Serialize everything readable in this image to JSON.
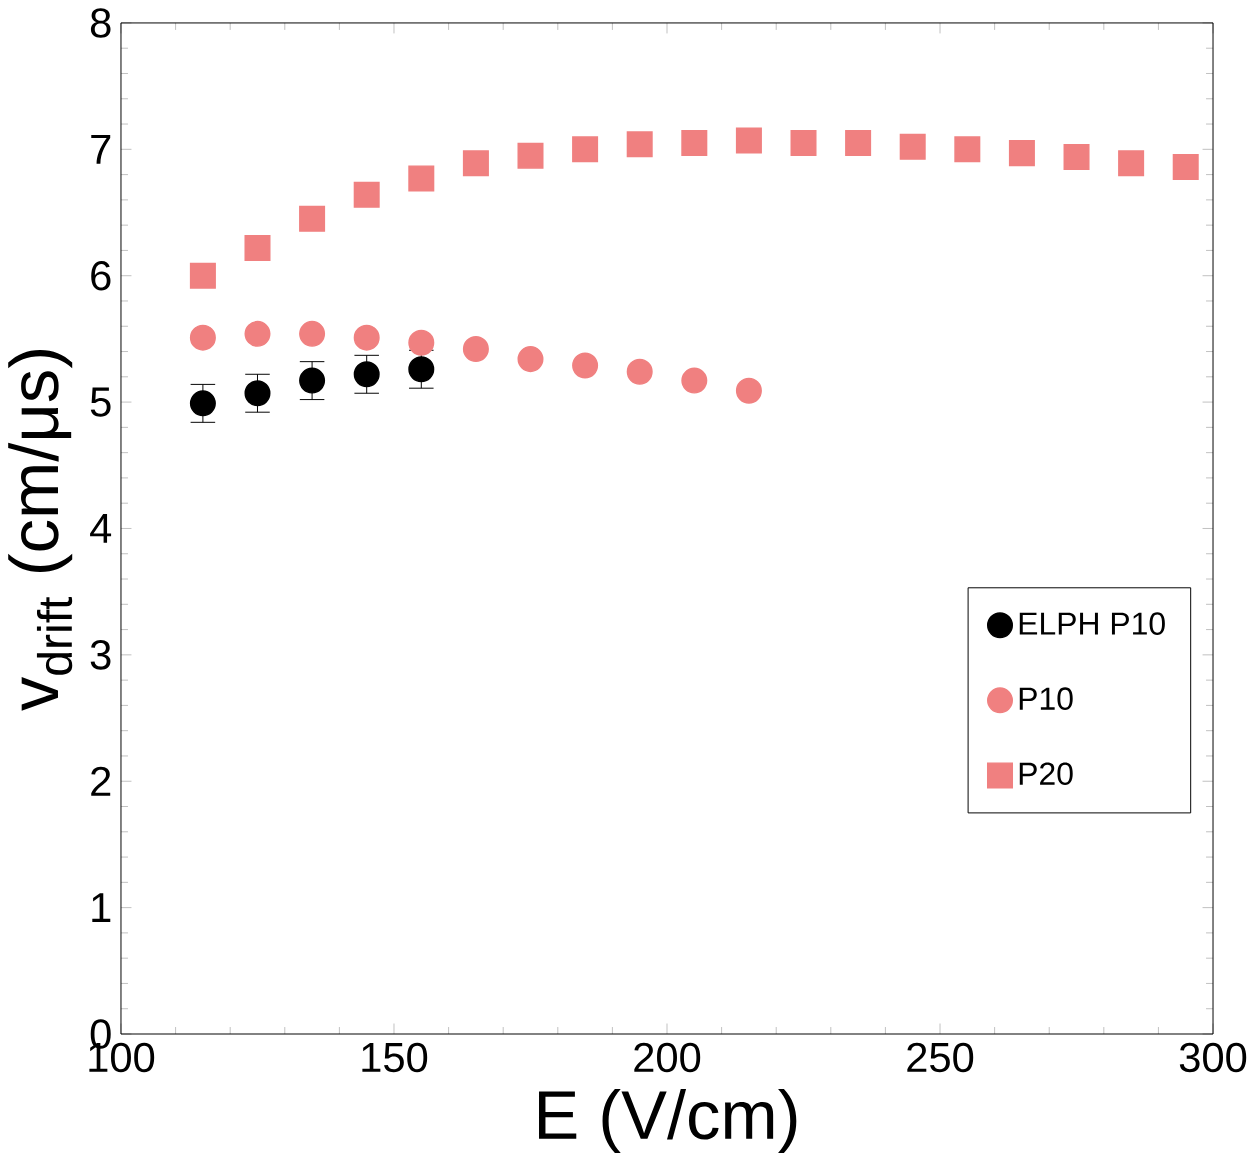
{
  "chart_data": {
    "type": "scatter",
    "xlabel": "E (V/cm)",
    "ylabel": "v$_{drift}$ (cm/μs)",
    "xlim": [
      100,
      300
    ],
    "ylim": [
      0,
      8
    ],
    "xticks": [
      100,
      150,
      200,
      250,
      300
    ],
    "yticks": [
      0,
      1,
      2,
      3,
      4,
      5,
      6,
      7,
      8
    ],
    "grid": false,
    "legend": "right",
    "series": [
      {
        "name": "ELPH P10",
        "color": "#000000",
        "marker": "circle",
        "x": [
          115,
          125,
          135,
          145,
          155
        ],
        "values": [
          4.99,
          5.07,
          5.17,
          5.22,
          5.26
        ],
        "errors": [
          0.15,
          0.15,
          0.15,
          0.15,
          0.15
        ]
      },
      {
        "name": "P10",
        "color": "#f08080",
        "marker": "circle",
        "x": [
          115,
          125,
          135,
          145,
          155,
          165,
          175,
          185,
          195,
          205,
          215
        ],
        "values": [
          5.51,
          5.54,
          5.54,
          5.51,
          5.47,
          5.42,
          5.34,
          5.29,
          5.24,
          5.17,
          5.09
        ]
      },
      {
        "name": "P20",
        "color": "#f08080",
        "marker": "square",
        "x": [
          115,
          125,
          135,
          145,
          155,
          165,
          175,
          185,
          195,
          205,
          215,
          225,
          235,
          245,
          255,
          265,
          275,
          285,
          295
        ],
        "values": [
          6.0,
          6.22,
          6.45,
          6.64,
          6.77,
          6.89,
          6.95,
          7.0,
          7.04,
          7.05,
          7.07,
          7.05,
          7.05,
          7.02,
          7.0,
          6.97,
          6.94,
          6.89,
          6.86
        ]
      }
    ]
  }
}
